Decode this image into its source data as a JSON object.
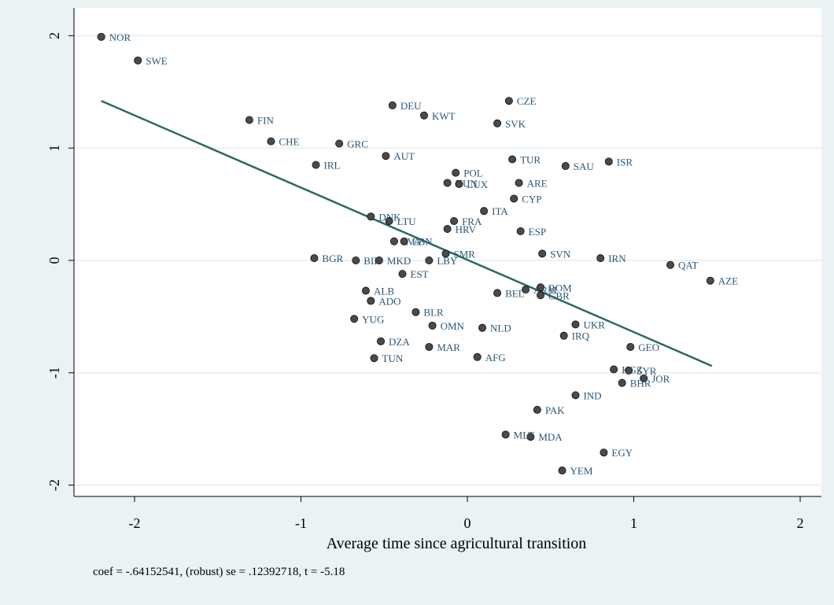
{
  "chart_data": {
    "type": "scatter",
    "title": "",
    "xlabel": "Average time since agricultural transition",
    "ylabel": "",
    "xlim": [
      -2.28,
      2.08
    ],
    "ylim": [
      -2.12,
      2.1
    ],
    "xticks": [
      -2,
      -1,
      0,
      1,
      2
    ],
    "xtick_labels": [
      "-2",
      "-1",
      "0",
      "1",
      "2"
    ],
    "yticks": [
      -2,
      -1,
      0,
      1,
      2
    ],
    "ytick_labels": [
      "-2",
      "-1",
      "0",
      "1",
      "2"
    ],
    "grid": true,
    "note": "coef = -.64152541, (robust) se = .12392718, t = -5.18",
    "colors": {
      "background": "#eaf2f3",
      "plot_background": "#ffffff",
      "grid": "#eaf2f3",
      "marker": "#4a4a4a",
      "label": "#2c5777",
      "fit_line": "#2a6a60"
    },
    "fit_line": {
      "x": [
        -2.2,
        1.47
      ],
      "y": [
        1.42,
        -0.94
      ]
    },
    "points": [
      {
        "label": "NOR",
        "x": -2.2,
        "y": 1.99
      },
      {
        "label": "SWE",
        "x": -1.98,
        "y": 1.78
      },
      {
        "label": "FIN",
        "x": -1.31,
        "y": 1.25
      },
      {
        "label": "CHE",
        "x": -1.18,
        "y": 1.06
      },
      {
        "label": "GRC",
        "x": -0.77,
        "y": 1.04
      },
      {
        "label": "IRL",
        "x": -0.91,
        "y": 0.85
      },
      {
        "label": "AUT",
        "x": -0.49,
        "y": 0.93
      },
      {
        "label": "DEU",
        "x": -0.45,
        "y": 1.38
      },
      {
        "label": "KWT",
        "x": -0.26,
        "y": 1.29
      },
      {
        "label": "CZE",
        "x": 0.25,
        "y": 1.42
      },
      {
        "label": "SVK",
        "x": 0.18,
        "y": 1.22
      },
      {
        "label": "TUR",
        "x": 0.27,
        "y": 0.9
      },
      {
        "label": "SAU",
        "x": 0.59,
        "y": 0.84
      },
      {
        "label": "ISR",
        "x": 0.85,
        "y": 0.88
      },
      {
        "label": "POL",
        "x": -0.07,
        "y": 0.78
      },
      {
        "label": "HUN",
        "x": -0.12,
        "y": 0.69
      },
      {
        "label": "LUX",
        "x": -0.05,
        "y": 0.68
      },
      {
        "label": "ARE",
        "x": 0.31,
        "y": 0.69
      },
      {
        "label": "CYP",
        "x": 0.28,
        "y": 0.55
      },
      {
        "label": "ITA",
        "x": 0.1,
        "y": 0.44
      },
      {
        "label": "DNK",
        "x": -0.58,
        "y": 0.39
      },
      {
        "label": "LTU",
        "x": -0.47,
        "y": 0.35
      },
      {
        "label": "FRA",
        "x": -0.08,
        "y": 0.35
      },
      {
        "label": "HRV",
        "x": -0.12,
        "y": 0.28
      },
      {
        "label": "ESP",
        "x": 0.32,
        "y": 0.26
      },
      {
        "label": "LVA",
        "x": -0.44,
        "y": 0.17
      },
      {
        "label": "LBN",
        "x": -0.38,
        "y": 0.17
      },
      {
        "label": "SVN",
        "x": 0.45,
        "y": 0.06
      },
      {
        "label": "IRN",
        "x": 0.8,
        "y": 0.02
      },
      {
        "label": "QAT",
        "x": 1.22,
        "y": -0.04
      },
      {
        "label": "AZE",
        "x": 1.46,
        "y": -0.18
      },
      {
        "label": "BGR",
        "x": -0.92,
        "y": 0.02
      },
      {
        "label": "BIH",
        "x": -0.67,
        "y": 0.0
      },
      {
        "label": "MKD",
        "x": -0.53,
        "y": 0.0
      },
      {
        "label": "SMR",
        "x": -0.13,
        "y": 0.06
      },
      {
        "label": "LBY",
        "x": -0.23,
        "y": 0.0
      },
      {
        "label": "EST",
        "x": -0.39,
        "y": -0.12
      },
      {
        "label": "ALB",
        "x": -0.61,
        "y": -0.27
      },
      {
        "label": "ADO",
        "x": -0.58,
        "y": -0.36
      },
      {
        "label": "BEL",
        "x": 0.18,
        "y": -0.29
      },
      {
        "label": "ARM",
        "x": 0.35,
        "y": -0.26
      },
      {
        "label": "ROM",
        "x": 0.44,
        "y": -0.24
      },
      {
        "label": "GBR",
        "x": 0.44,
        "y": -0.31
      },
      {
        "label": "BLR",
        "x": -0.31,
        "y": -0.46
      },
      {
        "label": "YUG",
        "x": -0.68,
        "y": -0.52
      },
      {
        "label": "OMN",
        "x": -0.21,
        "y": -0.58
      },
      {
        "label": "NLD",
        "x": 0.09,
        "y": -0.6
      },
      {
        "label": "UKR",
        "x": 0.65,
        "y": -0.57
      },
      {
        "label": "IRQ",
        "x": 0.58,
        "y": -0.67
      },
      {
        "label": "GEO",
        "x": 0.98,
        "y": -0.77
      },
      {
        "label": "DZA",
        "x": -0.52,
        "y": -0.72
      },
      {
        "label": "MAR",
        "x": -0.23,
        "y": -0.77
      },
      {
        "label": "TUN",
        "x": -0.56,
        "y": -0.87
      },
      {
        "label": "AFG",
        "x": 0.06,
        "y": -0.86
      },
      {
        "label": "KGZ",
        "x": 0.88,
        "y": -0.97
      },
      {
        "label": "SYR",
        "x": 0.97,
        "y": -0.98
      },
      {
        "label": "JOR",
        "x": 1.06,
        "y": -1.05
      },
      {
        "label": "BHR",
        "x": 0.93,
        "y": -1.09
      },
      {
        "label": "IND",
        "x": 0.65,
        "y": -1.2
      },
      {
        "label": "PAK",
        "x": 0.42,
        "y": -1.33
      },
      {
        "label": "MLT",
        "x": 0.23,
        "y": -1.55
      },
      {
        "label": "MDA",
        "x": 0.38,
        "y": -1.57
      },
      {
        "label": "EGY",
        "x": 0.82,
        "y": -1.71
      },
      {
        "label": "YEM",
        "x": 0.57,
        "y": -1.87
      }
    ]
  }
}
